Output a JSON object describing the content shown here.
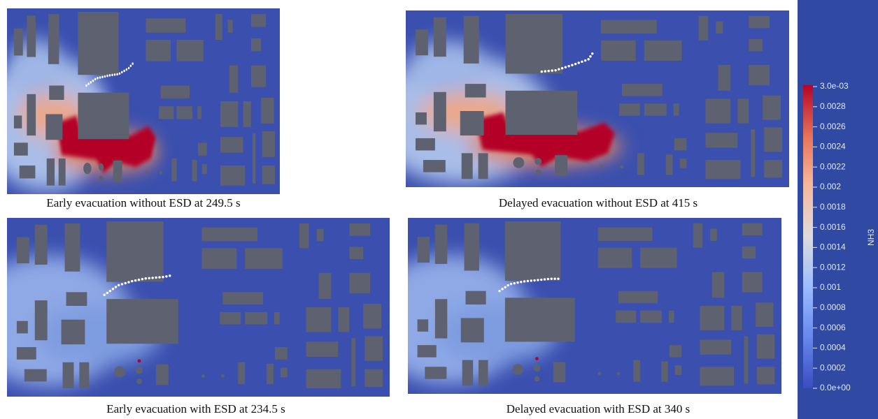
{
  "panels": [
    {
      "caption": "Early evacuation without ESD at 249.5 s"
    },
    {
      "caption": "Delayed evacuation without ESD at 415 s"
    },
    {
      "caption": "Early evacuation with ESD at 234.5 s"
    },
    {
      "caption": "Delayed evacuation with ESD at 340 s"
    }
  ],
  "colorbar": {
    "label": "NH3",
    "range": [
      0,
      0.003
    ],
    "ticks": [
      {
        "value": 0.003,
        "label": "3.0e-03"
      },
      0.0028,
      0.0026,
      0.0024,
      0.0022,
      0.002,
      0.0018,
      0.0016,
      0.0014,
      0.0012,
      0.001,
      0.0008,
      0.0006,
      0.0004,
      0.0002,
      {
        "value": 0,
        "label": "0.0e+00"
      }
    ]
  }
}
